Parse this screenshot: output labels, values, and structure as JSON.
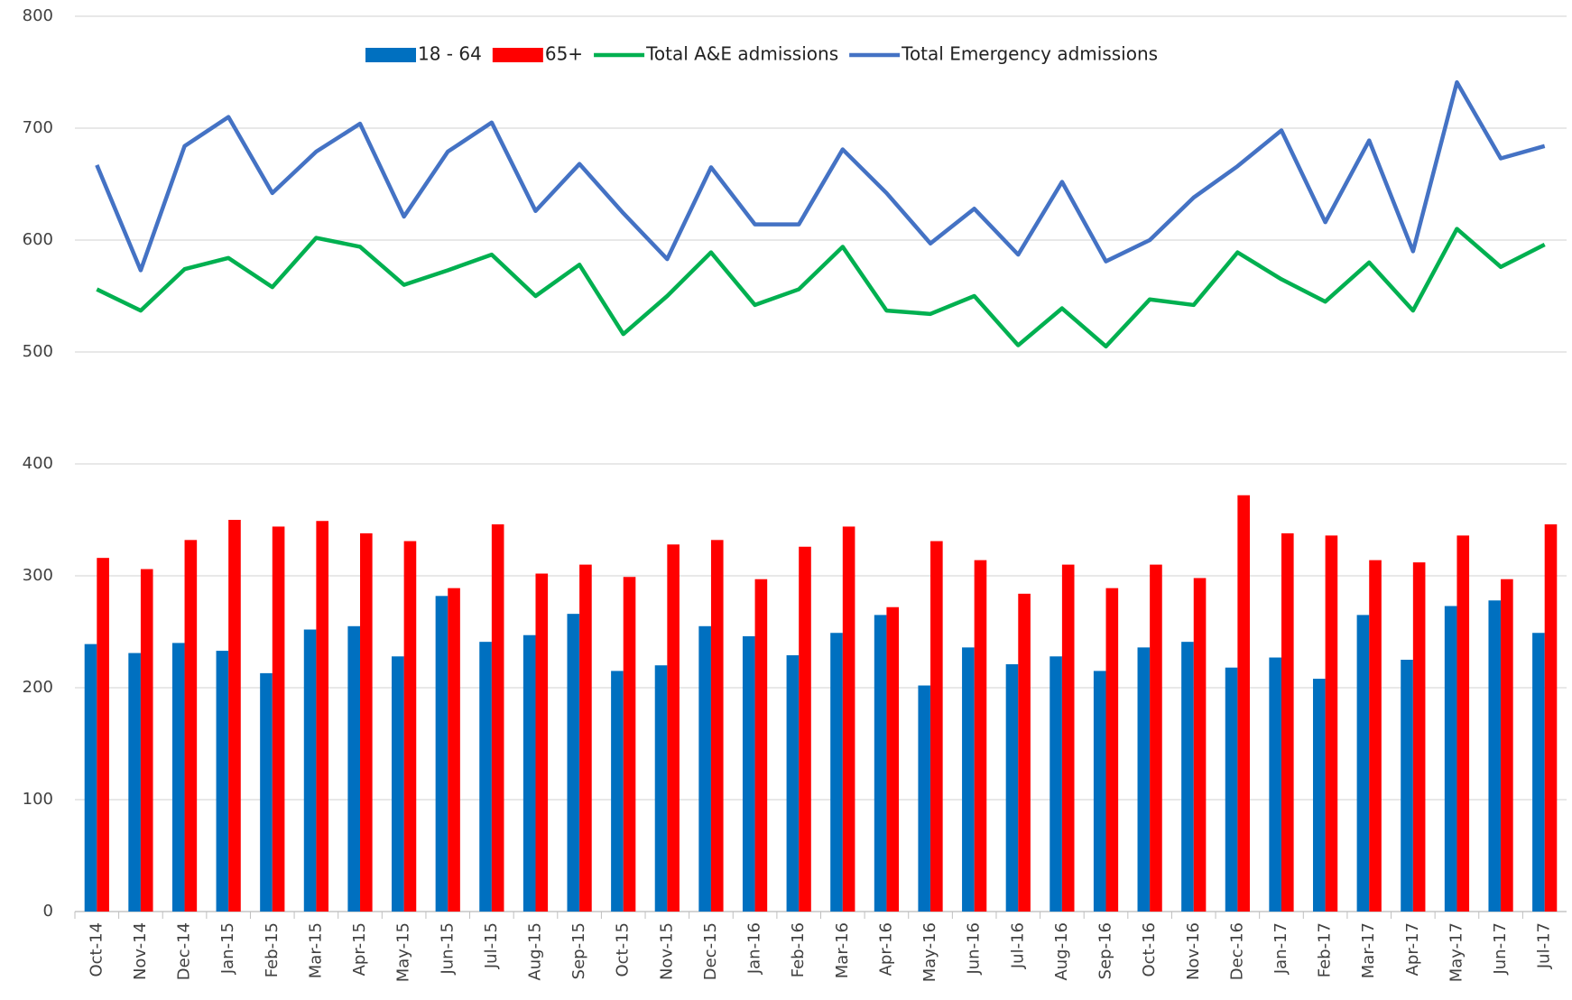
{
  "chart_data": {
    "type": "bar_line",
    "categories": [
      "Oct-14",
      "Nov-14",
      "Dec-14",
      "Jan-15",
      "Feb-15",
      "Mar-15",
      "Apr-15",
      "May-15",
      "Jun-15",
      "Jul-15",
      "Aug-15",
      "Sep-15",
      "Oct-15",
      "Nov-15",
      "Dec-15",
      "Jan-16",
      "Feb-16",
      "Mar-16",
      "Apr-16",
      "May-16",
      "Jun-16",
      "Jul-16",
      "Aug-16",
      "Sep-16",
      "Oct-16",
      "Nov-16",
      "Dec-16",
      "Jan-17",
      "Feb-17",
      "Mar-17",
      "Apr-17",
      "May-17",
      "Jun-17",
      "Jul-17"
    ],
    "series": [
      {
        "name": "18 - 64",
        "kind": "bar",
        "color": "#0070c0",
        "values": [
          239,
          231,
          240,
          233,
          213,
          252,
          255,
          228,
          282,
          241,
          247,
          266,
          215,
          220,
          255,
          246,
          229,
          249,
          265,
          202,
          236,
          221,
          228,
          215,
          236,
          241,
          218,
          227,
          208,
          265,
          225,
          273,
          278,
          249
        ]
      },
      {
        "name": "65+",
        "kind": "bar",
        "color": "#ff0000",
        "values": [
          316,
          306,
          332,
          350,
          344,
          349,
          338,
          331,
          289,
          346,
          302,
          310,
          299,
          328,
          332,
          297,
          326,
          344,
          272,
          331,
          314,
          284,
          310,
          289,
          310,
          298,
          372,
          338,
          336,
          314,
          312,
          336,
          297,
          346
        ]
      },
      {
        "name": "Total A&E admissions",
        "kind": "line",
        "color": "#00b050",
        "values": [
          556,
          537,
          574,
          584,
          558,
          602,
          594,
          560,
          573,
          587,
          550,
          578,
          516,
          550,
          589,
          542,
          556,
          594,
          537,
          534,
          550,
          506,
          539,
          505,
          547,
          542,
          589,
          565,
          545,
          580,
          537,
          610,
          576,
          596
        ]
      },
      {
        "name": "Total Emergency admissions",
        "kind": "line",
        "color": "#4472c4",
        "values": [
          667,
          573,
          684,
          710,
          642,
          679,
          704,
          621,
          679,
          705,
          626,
          668,
          624,
          583,
          665,
          614,
          614,
          681,
          642,
          597,
          628,
          587,
          652,
          581,
          600,
          638,
          666,
          698,
          616,
          689,
          590,
          741,
          673,
          684
        ]
      }
    ],
    "ylim": [
      0,
      800
    ],
    "yticks": [
      0,
      100,
      200,
      300,
      400,
      500,
      600,
      700,
      800
    ],
    "grid": true
  }
}
